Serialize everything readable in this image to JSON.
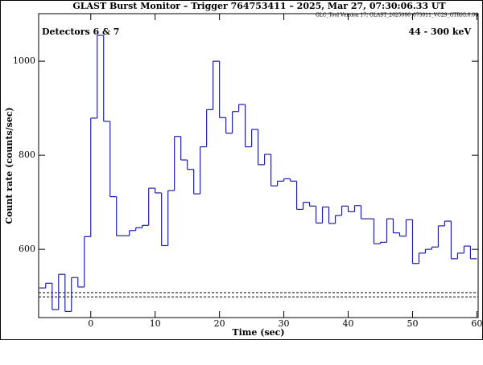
{
  "chart_data": {
    "type": "histogram",
    "title": "GLAST Burst Monitor  –  Trigger 764753411  –  2025, Mar 27, 07:30:06.33 UT",
    "subtitle": "GLC_Tool Version 17; GLAST_2025086_073011_VC29_GTRIG.0.00",
    "annotations": [
      "Detectors 6 & 7",
      "44 - 300 keV"
    ],
    "xlabel": "Time (sec)",
    "ylabel": "Count rate (counts/sec)",
    "bins": [
      -8,
      -7,
      -6,
      -5,
      -4,
      -3,
      -2,
      -1,
      0,
      1,
      2,
      3,
      4,
      5,
      6,
      7,
      8,
      9,
      10,
      11,
      12,
      13,
      14,
      15,
      16,
      17,
      18,
      19,
      20,
      21,
      22,
      23,
      24,
      25,
      26,
      27,
      28,
      29,
      30,
      31,
      32,
      33,
      34,
      35,
      36,
      37,
      38,
      39,
      40,
      41,
      42,
      43,
      44,
      45,
      46,
      47,
      48,
      49,
      50,
      51,
      52,
      53,
      54,
      55,
      56,
      57,
      58,
      59,
      60
    ],
    "values": [
      518,
      528,
      472,
      547,
      468,
      540,
      520,
      627,
      879,
      1055,
      872,
      712,
      629,
      629,
      640,
      646,
      651,
      730,
      720,
      608,
      725,
      840,
      790,
      770,
      718,
      818,
      897,
      1000,
      880,
      847,
      893,
      908,
      818,
      855,
      780,
      802,
      735,
      745,
      750,
      745,
      685,
      700,
      692,
      656,
      690,
      655,
      672,
      692,
      680,
      693,
      665,
      665,
      612,
      615,
      665,
      635,
      628,
      663,
      570,
      592,
      600,
      605,
      650,
      660,
      580,
      592,
      607,
      580
    ],
    "color": "#1f1fa8",
    "background_levels": [
      508,
      499
    ],
    "xlim": [
      -8.1,
      60.2
    ],
    "ylim": [
      455,
      1101
    ],
    "xticks": [
      0,
      10,
      20,
      30,
      40,
      50,
      60
    ],
    "yticks": [
      600,
      800,
      1000
    ]
  }
}
